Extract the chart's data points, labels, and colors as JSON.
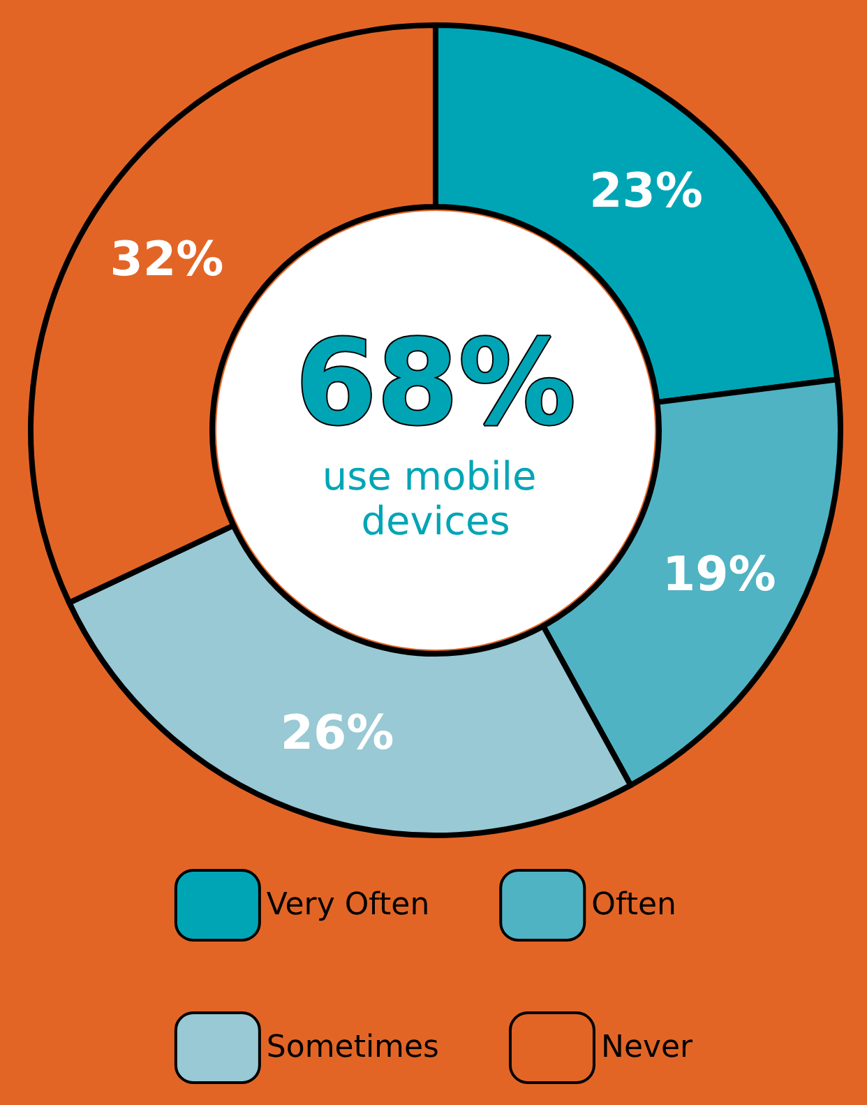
{
  "chart_data": {
    "type": "donut",
    "categories": [
      "Very Often",
      "Often",
      "Sometimes",
      "Never"
    ],
    "values": [
      23,
      19,
      26,
      32
    ],
    "colors": [
      "#00a5b5",
      "#4fb3c3",
      "#98c9d4",
      "#e36526"
    ],
    "value_labels": [
      "23%",
      "19%",
      "26%",
      "32%"
    ],
    "annotations": [
      "68%",
      "use mobile devices"
    ],
    "legend": "bottom"
  }
}
